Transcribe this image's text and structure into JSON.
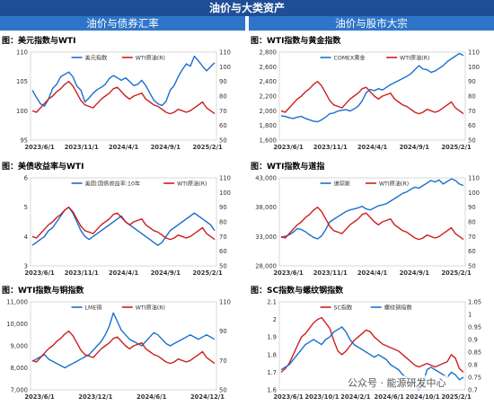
{
  "header": {
    "title": "油价与大类资产"
  },
  "sections": {
    "left": "油价与债券汇率",
    "right": "油价与股市大宗"
  },
  "watermark": "公众号 · 能源研发中心",
  "colors": {
    "blue": "#1a6fd0",
    "red": "#cc1f1f",
    "header": "#1f4e96",
    "section": "#2e75c9"
  },
  "chart_data": [
    {
      "title": "图：美元指数与WTI",
      "type": "line",
      "x_ticks": [
        "2023/6/1",
        "2023/11/1",
        "2024/4/1",
        "2024/9/1",
        "2025/2/1"
      ],
      "yleft": {
        "ticks": [
          "95",
          "100",
          "105",
          "110"
        ],
        "range": [
          95,
          110
        ]
      },
      "yright": {
        "ticks": [
          "50",
          "60",
          "70",
          "80",
          "90",
          "100",
          "110"
        ],
        "range": [
          50,
          110
        ]
      },
      "series": [
        {
          "name": "美元指数",
          "axis": "left",
          "color": "#1a6fd0",
          "values": [
            103.5,
            102.3,
            101.2,
            100.8,
            102.0,
            103.8,
            104.5,
            105.8,
            106.2,
            106.6,
            105.8,
            104.2,
            103.5,
            101.5,
            102.2,
            103.0,
            103.6,
            104.0,
            104.5,
            105.5,
            106.0,
            105.6,
            105.2,
            105.6,
            105.0,
            104.3,
            104.5,
            105.2,
            104.3,
            103.0,
            101.8,
            101.2,
            100.9,
            101.6,
            103.5,
            104.3,
            105.8,
            107.0,
            108.0,
            107.6,
            109.3,
            108.5,
            107.6,
            106.8,
            107.5,
            108.2
          ]
        },
        {
          "name": "WTI原油(R)",
          "axis": "right",
          "color": "#cc1f1f",
          "values": [
            70,
            69,
            72,
            75,
            78,
            80,
            83,
            85,
            88,
            90,
            87,
            82,
            77,
            74,
            73,
            72,
            75,
            78,
            80,
            82,
            85,
            86,
            83,
            80,
            78,
            80,
            81,
            82,
            78,
            76,
            74,
            73,
            71,
            69,
            68,
            69,
            71,
            70,
            69,
            70,
            72,
            74,
            76,
            72,
            70,
            68
          ]
        }
      ]
    },
    {
      "title": "图：WTI指数与黄金指数",
      "type": "line",
      "x_ticks": [
        "2023/6/1",
        "2023/11/1",
        "2024/4/1",
        "2024/9/1",
        "2025/2/1"
      ],
      "yleft": {
        "ticks": [
          "1,600",
          "1,800",
          "2,000",
          "2,200",
          "2,400",
          "2,600",
          "2,800"
        ],
        "range": [
          1600,
          2900
        ]
      },
      "yright": {
        "ticks": [
          "50",
          "60",
          "70",
          "80",
          "90",
          "100",
          "110"
        ],
        "range": [
          50,
          110
        ]
      },
      "series": [
        {
          "name": "COMEX黄金",
          "axis": "left",
          "color": "#1a6fd0",
          "values": [
            1960,
            1950,
            1930,
            1920,
            1940,
            1950,
            1920,
            1900,
            1880,
            1870,
            1900,
            1940,
            1990,
            2000,
            2030,
            2040,
            2050,
            2030,
            2060,
            2100,
            2180,
            2300,
            2350,
            2330,
            2360,
            2340,
            2380,
            2420,
            2450,
            2480,
            2510,
            2540,
            2580,
            2640,
            2700,
            2650,
            2640,
            2600,
            2620,
            2660,
            2700,
            2760,
            2800,
            2840,
            2880,
            2850
          ]
        },
        {
          "name": "WTI原油(R)",
          "axis": "right",
          "color": "#cc1f1f",
          "values": [
            70,
            69,
            72,
            75,
            78,
            80,
            83,
            85,
            88,
            90,
            87,
            82,
            77,
            74,
            73,
            72,
            75,
            78,
            80,
            82,
            85,
            86,
            83,
            80,
            78,
            80,
            81,
            82,
            78,
            76,
            74,
            73,
            71,
            69,
            68,
            69,
            71,
            70,
            69,
            70,
            72,
            74,
            76,
            72,
            70,
            68
          ]
        }
      ]
    },
    {
      "title": "图：美债收益率与WTI",
      "type": "line",
      "x_ticks": [
        "2023/6/1",
        "2023/11/1",
        "2024/4/1",
        "2024/9/1",
        "2025/2/1"
      ],
      "yleft": {
        "ticks": [
          "3",
          "4",
          "5",
          "6"
        ],
        "range": [
          3,
          6
        ]
      },
      "yright": {
        "ticks": [
          "50",
          "60",
          "70",
          "80",
          "90",
          "100",
          "110"
        ],
        "range": [
          50,
          110
        ]
      },
      "series": [
        {
          "name": "美国:国债收益率:10年",
          "axis": "left",
          "color": "#1a6fd0",
          "values": [
            3.7,
            3.8,
            3.9,
            4.0,
            4.2,
            4.3,
            4.5,
            4.7,
            4.9,
            5.0,
            4.8,
            4.5,
            4.2,
            4.0,
            3.9,
            4.0,
            4.1,
            4.2,
            4.3,
            4.4,
            4.5,
            4.6,
            4.7,
            4.5,
            4.4,
            4.3,
            4.2,
            4.1,
            4.0,
            3.9,
            3.8,
            3.7,
            3.8,
            4.0,
            4.2,
            4.3,
            4.4,
            4.5,
            4.6,
            4.7,
            4.8,
            4.7,
            4.6,
            4.5,
            4.4,
            4.2
          ]
        },
        {
          "name": "WTI原油(R)",
          "axis": "right",
          "color": "#cc1f1f",
          "values": [
            70,
            69,
            72,
            75,
            78,
            80,
            83,
            85,
            88,
            90,
            87,
            82,
            77,
            74,
            73,
            72,
            75,
            78,
            80,
            82,
            85,
            86,
            83,
            80,
            78,
            80,
            81,
            82,
            78,
            76,
            74,
            73,
            71,
            69,
            68,
            69,
            71,
            70,
            69,
            70,
            72,
            74,
            76,
            72,
            70,
            68
          ]
        }
      ]
    },
    {
      "title": "图：WTI指数与道指",
      "type": "line",
      "x_ticks": [
        "2023/6/1",
        "2023/11/1",
        "2024/4/1",
        "2024/9/1",
        "2025/2/1"
      ],
      "yleft": {
        "ticks": [
          "28,000",
          "33,000",
          "38,000",
          "43,000"
        ],
        "range": [
          28000,
          45000
        ]
      },
      "yright": {
        "ticks": [
          "50",
          "60",
          "70",
          "80",
          "90",
          "100",
          "110"
        ],
        "range": [
          50,
          110
        ]
      },
      "series": [
        {
          "name": "道琼斯",
          "axis": "left",
          "color": "#1a6fd0",
          "values": [
            33500,
            33700,
            34000,
            34500,
            35200,
            35000,
            34600,
            34000,
            33500,
            33200,
            33800,
            35000,
            36500,
            37000,
            37500,
            38000,
            38500,
            38800,
            39000,
            39200,
            39500,
            39000,
            38800,
            39200,
            39600,
            39800,
            40000,
            40500,
            41000,
            41500,
            42000,
            42300,
            42800,
            43200,
            43000,
            43500,
            44000,
            44500,
            44200,
            44600,
            43800,
            44300,
            44800,
            44500,
            43800,
            43500
          ]
        },
        {
          "name": "WTI原油(R)",
          "axis": "right",
          "color": "#cc1f1f",
          "values": [
            70,
            69,
            72,
            75,
            78,
            80,
            83,
            85,
            88,
            90,
            87,
            82,
            77,
            74,
            73,
            72,
            75,
            78,
            80,
            82,
            85,
            86,
            83,
            80,
            78,
            80,
            81,
            82,
            78,
            76,
            74,
            73,
            71,
            69,
            68,
            69,
            71,
            70,
            69,
            70,
            72,
            74,
            76,
            72,
            70,
            68
          ]
        }
      ]
    },
    {
      "title": "图：WTI指数与铜指数",
      "type": "line",
      "x_ticks": [
        "2023/6/1",
        "2023/12/1",
        "2024/6/1",
        "2024/12/1"
      ],
      "yleft": {
        "ticks": [
          "7,000",
          "8,000",
          "9,000",
          "10,000",
          "11,000"
        ],
        "range": [
          7000,
          11000
        ]
      },
      "yright": {
        "ticks": [
          "50",
          "70",
          "90",
          "110"
        ],
        "range": [
          50,
          110
        ]
      },
      "series": [
        {
          "name": "LME铜",
          "axis": "left",
          "color": "#1a6fd0",
          "values": [
            8300,
            8400,
            8500,
            8600,
            8400,
            8300,
            8200,
            8100,
            8000,
            8100,
            8200,
            8300,
            8400,
            8500,
            8600,
            8800,
            9000,
            9200,
            9500,
            9900,
            10500,
            10100,
            9700,
            9500,
            9300,
            9200,
            9100,
            9000,
            9200,
            9400,
            9600,
            9500,
            9300,
            9100,
            9000,
            9100,
            9200,
            9300,
            9400,
            9500,
            9400,
            9300,
            9400,
            9500,
            9400,
            9300
          ]
        },
        {
          "name": "WTI原油(R)",
          "axis": "right",
          "color": "#cc1f1f",
          "values": [
            70,
            69,
            72,
            75,
            78,
            80,
            83,
            85,
            88,
            90,
            87,
            82,
            77,
            74,
            73,
            72,
            75,
            78,
            80,
            82,
            85,
            86,
            83,
            80,
            78,
            80,
            81,
            82,
            78,
            76,
            74,
            73,
            71,
            69,
            68,
            69,
            71,
            70,
            69,
            70,
            72,
            74,
            76,
            72,
            70,
            68
          ]
        }
      ]
    },
    {
      "title": "图：SC指数与螺纹钢指数",
      "type": "line",
      "x_ticks": [
        "2023/6/1",
        "2023/10/1",
        "2024/2/1",
        "2024/6/1",
        "2024/10/1",
        "2025/2/1"
      ],
      "yleft": {
        "ticks": [
          "1.6",
          "1.7",
          "1.8",
          "1.9",
          "2",
          "2.1"
        ],
        "range": [
          1.6,
          2.1
        ]
      },
      "yright": {
        "ticks": [
          "0.7",
          "0.75",
          "0.8",
          "0.85",
          "0.9",
          "0.95",
          "1",
          "1.05"
        ],
        "range": [
          0.7,
          1.05
        ]
      },
      "series": [
        {
          "name": "SC指数",
          "axis": "left",
          "color": "#cc1f1f",
          "values": [
            1.7,
            1.72,
            1.75,
            1.8,
            1.85,
            1.9,
            1.92,
            1.95,
            1.98,
            2.0,
            2.01,
            1.98,
            1.95,
            1.88,
            1.82,
            1.8,
            1.82,
            1.85,
            1.88,
            1.9,
            1.92,
            1.94,
            1.93,
            1.9,
            1.88,
            1.86,
            1.85,
            1.84,
            1.83,
            1.82,
            1.8,
            1.78,
            1.76,
            1.74,
            1.73,
            1.74,
            1.75,
            1.74,
            1.73,
            1.74,
            1.75,
            1.76,
            1.8,
            1.78,
            1.72,
            1.7
          ]
        },
        {
          "name": "螺纹钢指数",
          "axis": "right",
          "color": "#1a6fd0",
          "values": [
            0.78,
            0.79,
            0.8,
            0.82,
            0.84,
            0.86,
            0.88,
            0.89,
            0.9,
            0.89,
            0.88,
            0.9,
            0.91,
            0.93,
            0.94,
            0.95,
            0.93,
            0.9,
            0.88,
            0.87,
            0.86,
            0.85,
            0.84,
            0.83,
            0.84,
            0.83,
            0.82,
            0.8,
            0.79,
            0.78,
            0.76,
            0.75,
            0.74,
            0.72,
            0.7,
            0.72,
            0.78,
            0.79,
            0.78,
            0.77,
            0.76,
            0.75,
            0.77,
            0.76,
            0.74,
            0.75
          ]
        }
      ]
    }
  ]
}
